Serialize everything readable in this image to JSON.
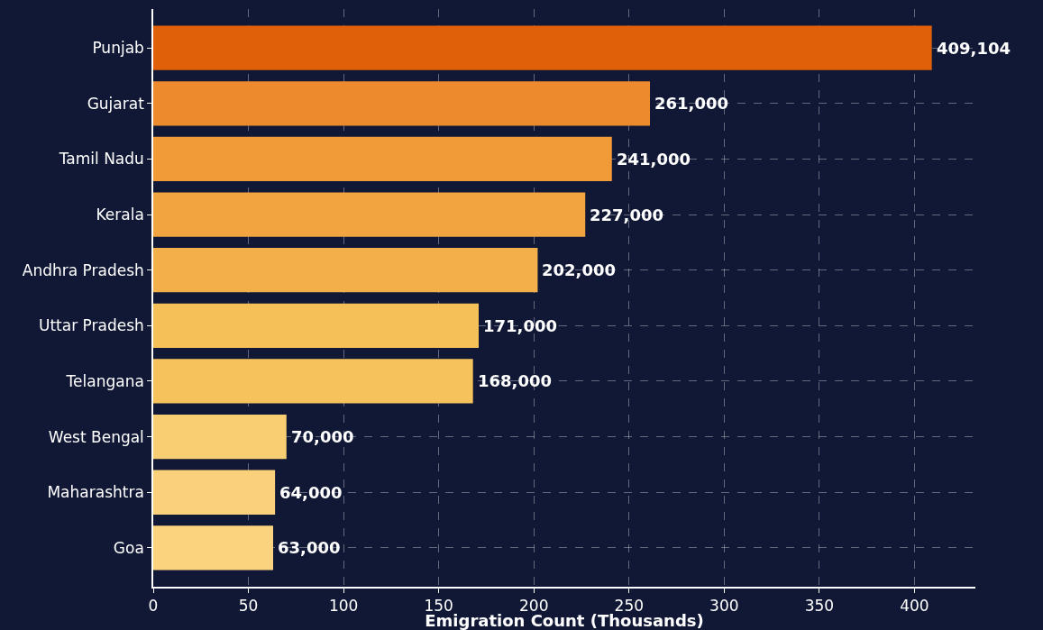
{
  "chart_data": {
    "type": "bar",
    "orientation": "horizontal",
    "xlabel": "Emigration Count (Thousands)",
    "categories": [
      "Punjab",
      "Gujarat",
      "Tamil Nadu",
      "Kerala",
      "Andhra Pradesh",
      "Uttar Pradesh",
      "Telangana",
      "West Bengal",
      "Maharashtra",
      "Goa"
    ],
    "values": [
      409.104,
      261,
      241,
      227,
      202,
      171,
      168,
      70,
      64,
      63
    ],
    "annotations": [
      {
        "text": "409,104",
        "x": 409.104,
        "y": "Punjab"
      },
      {
        "text": "261,000",
        "x": 261,
        "y": "Gujarat"
      },
      {
        "text": "241,000",
        "x": 241,
        "y": "Tamil Nadu"
      },
      {
        "text": "227,000",
        "x": 227,
        "y": "Kerala"
      },
      {
        "text": "202,000",
        "x": 202,
        "y": "Andhra Pradesh"
      },
      {
        "text": "171,000",
        "x": 171,
        "y": "Uttar Pradesh"
      },
      {
        "text": "168,000",
        "x": 168,
        "y": "Telangana"
      },
      {
        "text": "70,000",
        "x": 70,
        "y": "West Bengal"
      },
      {
        "text": "64,000",
        "x": 64,
        "y": "Maharashtra"
      },
      {
        "text": "63,000",
        "x": 63,
        "y": "Goa"
      }
    ],
    "colors": [
      "#e0600a",
      "#ee8a2e",
      "#f09a38",
      "#f2a440",
      "#f3b04a",
      "#f6c058",
      "#f6c25c",
      "#f9cd72",
      "#fad07a",
      "#fbd27e"
    ],
    "xlim": [
      0,
      432
    ],
    "xticks": [
      0,
      50,
      100,
      150,
      200,
      250,
      300,
      350,
      400
    ],
    "grid": true
  }
}
